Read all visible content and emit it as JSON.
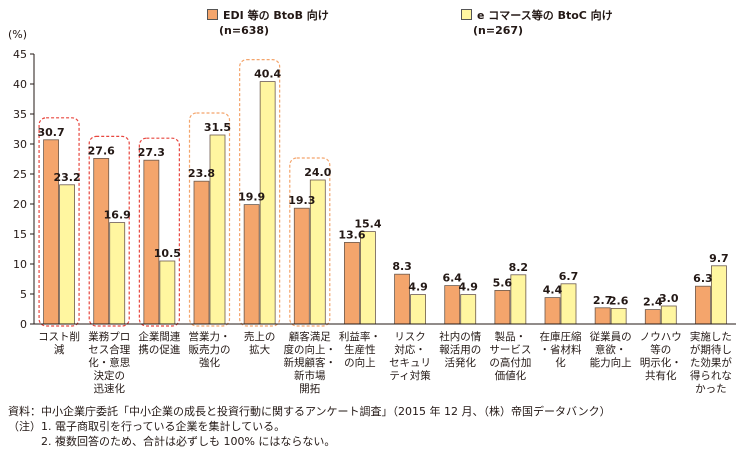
{
  "chart_data": {
    "type": "bar",
    "ylabel": "(%)",
    "ylim": [
      0,
      45
    ],
    "yticks": [
      0,
      5,
      10,
      15,
      20,
      25,
      30,
      35,
      40,
      45
    ],
    "categories": [
      [
        "コスト削",
        "減"
      ],
      [
        "業務プロ",
        "セス合理",
        "化・意思",
        "決定の",
        "迅速化"
      ],
      [
        "企業間連",
        "携の促進"
      ],
      [
        "営業力・",
        "販売力の",
        "強化"
      ],
      [
        "売上の",
        "拡大"
      ],
      [
        "顧客満足",
        "度の向上・",
        "新規顧客・",
        "新市場",
        "開拓"
      ],
      [
        "利益率・",
        "生産性",
        "の向上"
      ],
      [
        "リスク",
        "対応・",
        "セキュリ",
        "ティ対策"
      ],
      [
        "社内の情",
        "報活用の",
        "活発化"
      ],
      [
        "製品・",
        "サービス",
        "の高付加",
        "価値化"
      ],
      [
        "在庫圧縮",
        "・省材料",
        "化"
      ],
      [
        "従業員の",
        "意欲・",
        "能力向上"
      ],
      [
        "ノウハウ",
        "等の",
        "明示化・",
        "共有化"
      ],
      [
        "実施した",
        "が期待し",
        "た効果が",
        "得られな",
        "かった"
      ]
    ],
    "series": [
      {
        "name": "EDI 等の BtoB 向け",
        "n": "(n=638)",
        "color": "#F4A56C",
        "values": [
          30.7,
          27.6,
          27.3,
          23.8,
          19.9,
          19.3,
          13.6,
          8.3,
          6.4,
          5.6,
          4.4,
          2.7,
          2.4,
          6.3
        ]
      },
      {
        "name": "e コマース等の BtoC 向け",
        "n": "(n=267)",
        "color": "#FFF6A0",
        "values": [
          23.2,
          16.9,
          10.5,
          31.5,
          40.4,
          24.0,
          15.4,
          4.9,
          4.9,
          8.2,
          6.7,
          2.6,
          3.0,
          9.7
        ]
      }
    ],
    "value_labels": [
      [
        "30.7",
        "27.6",
        "27.3",
        "23.8",
        "19.9",
        "19.3",
        "13.6",
        "8.3",
        "6.4",
        "5.6",
        "4.4",
        "2.7",
        "2.4",
        "6.3"
      ],
      [
        "23.2",
        "16.9",
        "10.5",
        "31.5",
        "40.4",
        "24.0",
        "15.4",
        "4.9",
        "4.9",
        "8.2",
        "6.7",
        "2.6",
        "3.0",
        "9.7"
      ]
    ],
    "highlights": [
      {
        "category_index": 0,
        "series_index": 0,
        "color": "#E8473F"
      },
      {
        "category_index": 1,
        "series_index": 0,
        "color": "#E8473F"
      },
      {
        "category_index": 2,
        "series_index": 0,
        "color": "#E8473F"
      },
      {
        "category_index": 3,
        "series_index": 1,
        "color": "#F4A56C"
      },
      {
        "category_index": 4,
        "series_index": 1,
        "color": "#F4A56C"
      },
      {
        "category_index": 5,
        "series_index": 1,
        "color": "#F4A56C"
      }
    ],
    "grid": false,
    "legend_position": "top"
  },
  "notes": [
    "資料：中小企業庁委託「中小企業の成長と投資行動に関するアンケート調査」（2015 年 12 月、（株）帝国データバンク）",
    "（注）1. 電子商取引を行っている企業を集計している。",
    "　　　2. 複数回答のため、合計は必ずしも 100% にはならない。"
  ]
}
